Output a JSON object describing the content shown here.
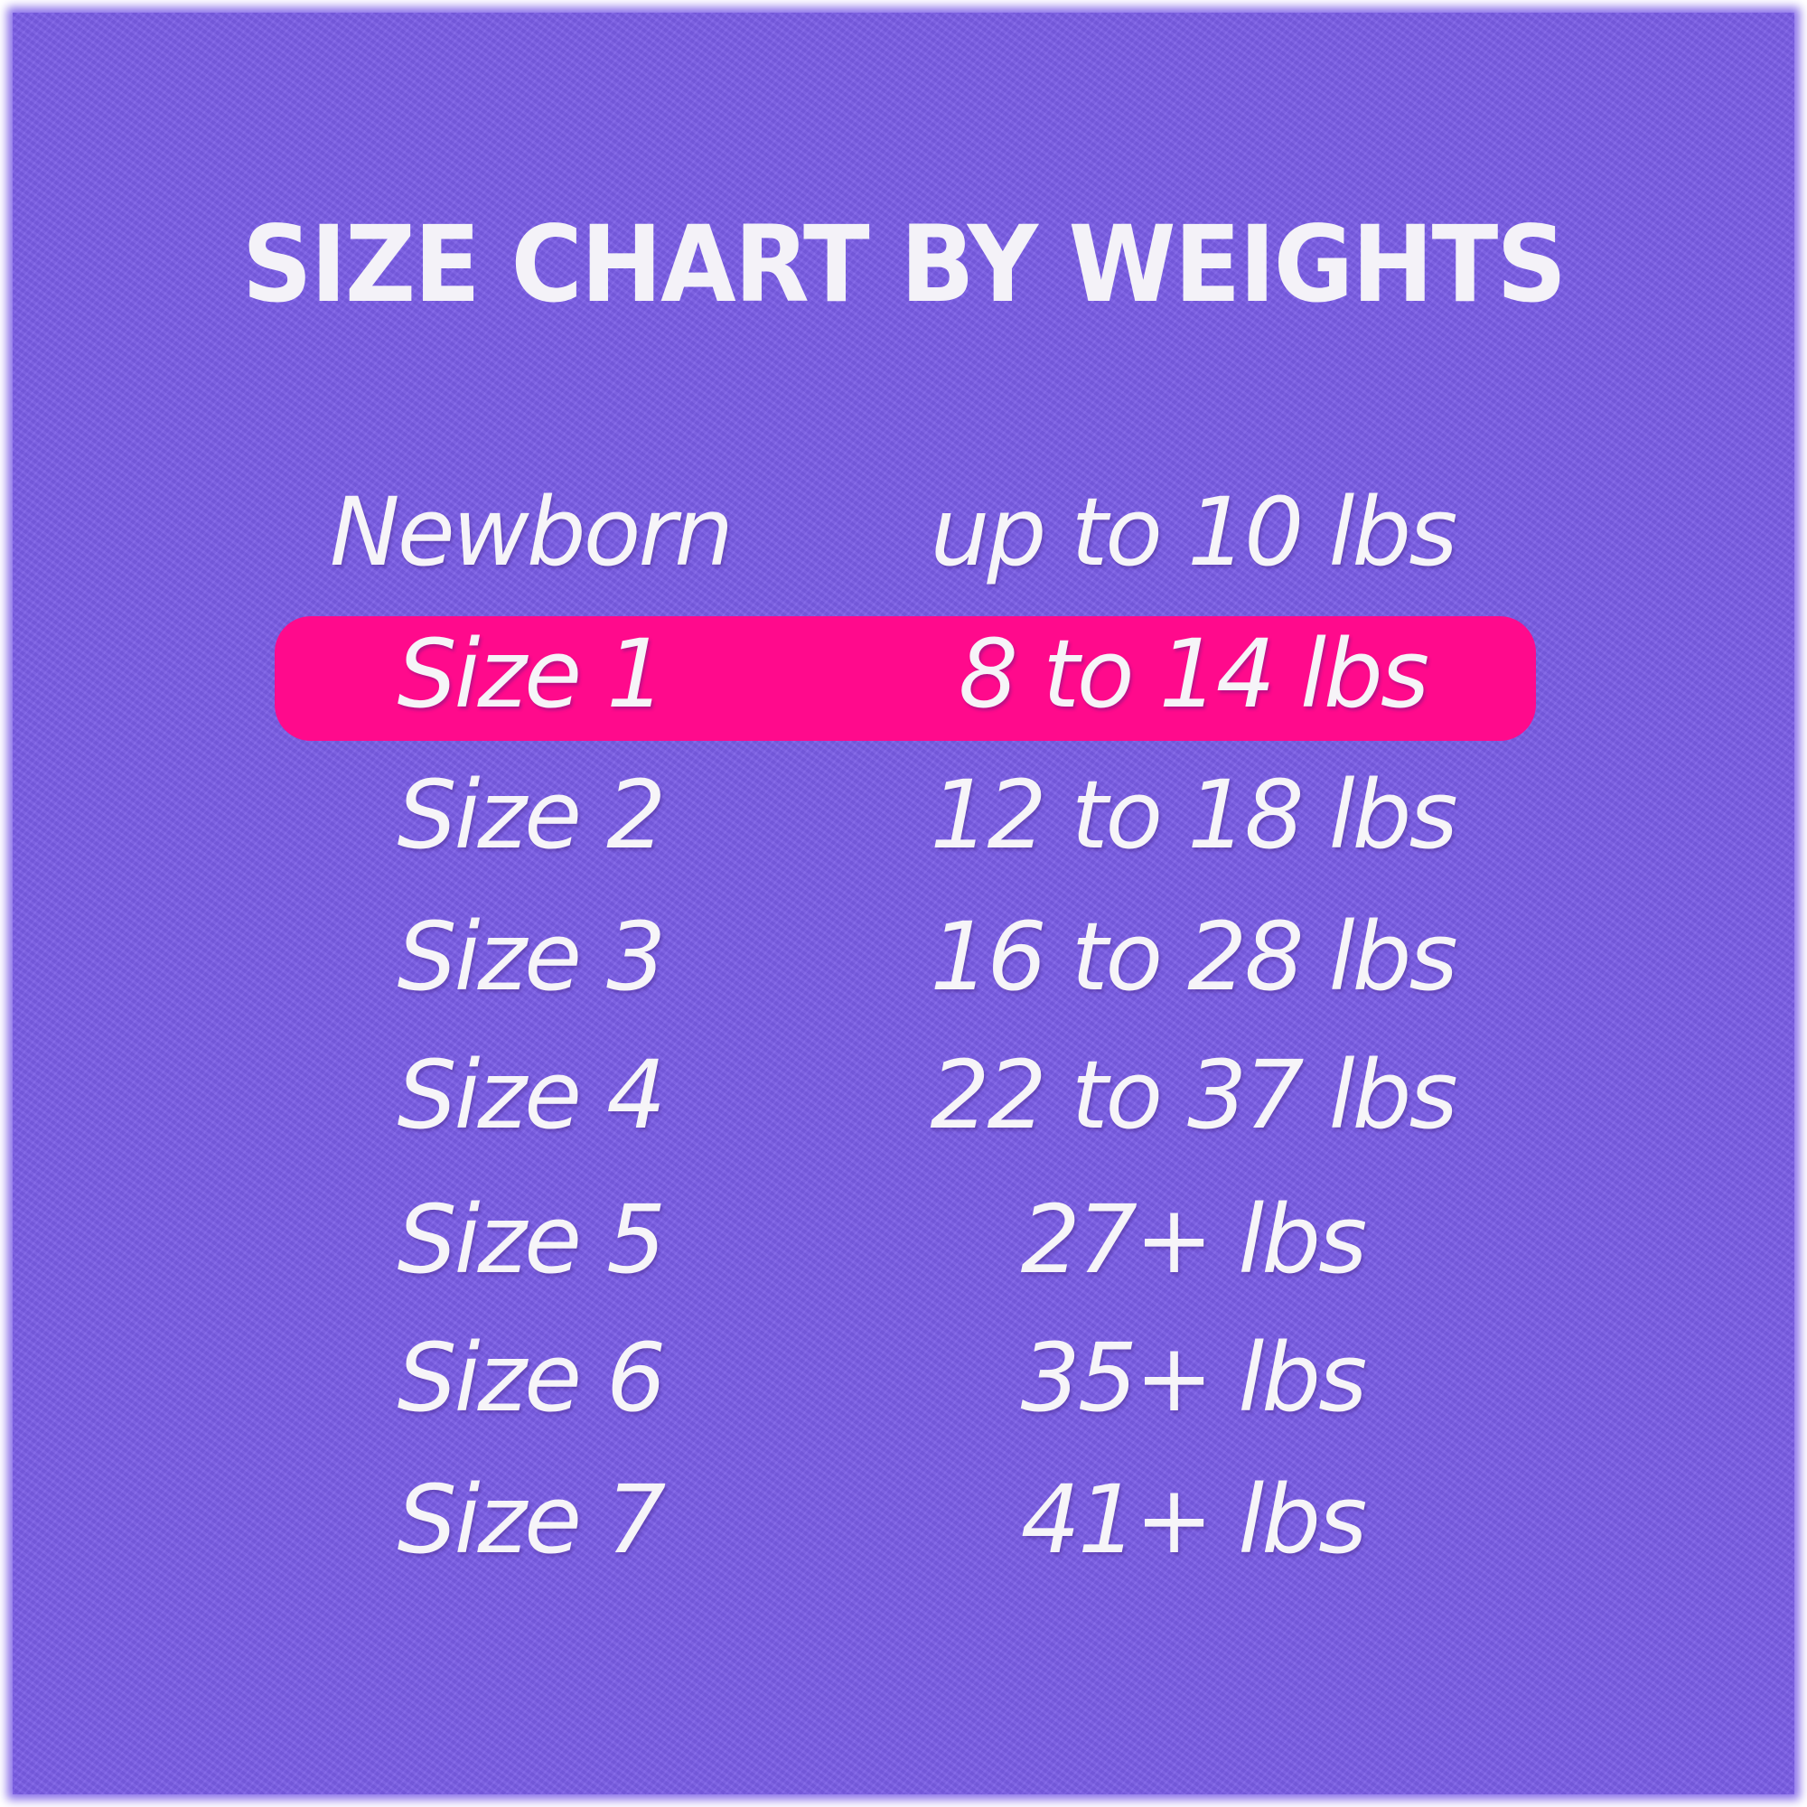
{
  "title": "SIZE CHART BY WEIGHTS",
  "colors": {
    "background": "#7a5de6",
    "highlight": "#ff0a8c",
    "text": "#f6f4f8"
  },
  "highlighted_row": "Size 1",
  "rows": [
    {
      "size": "Newborn",
      "weight": "up to 10 lbs"
    },
    {
      "size": "Size 1",
      "weight": "8 to 14 lbs"
    },
    {
      "size": "Size 2",
      "weight": "12 to 18 lbs"
    },
    {
      "size": "Size 3",
      "weight": "16 to 28 lbs"
    },
    {
      "size": "Size 4",
      "weight": "22 to 37 lbs"
    },
    {
      "size": "Size 5",
      "weight": "27+ lbs"
    },
    {
      "size": "Size 6",
      "weight": "35+ lbs"
    },
    {
      "size": "Size 7",
      "weight": "41+ lbs"
    }
  ]
}
